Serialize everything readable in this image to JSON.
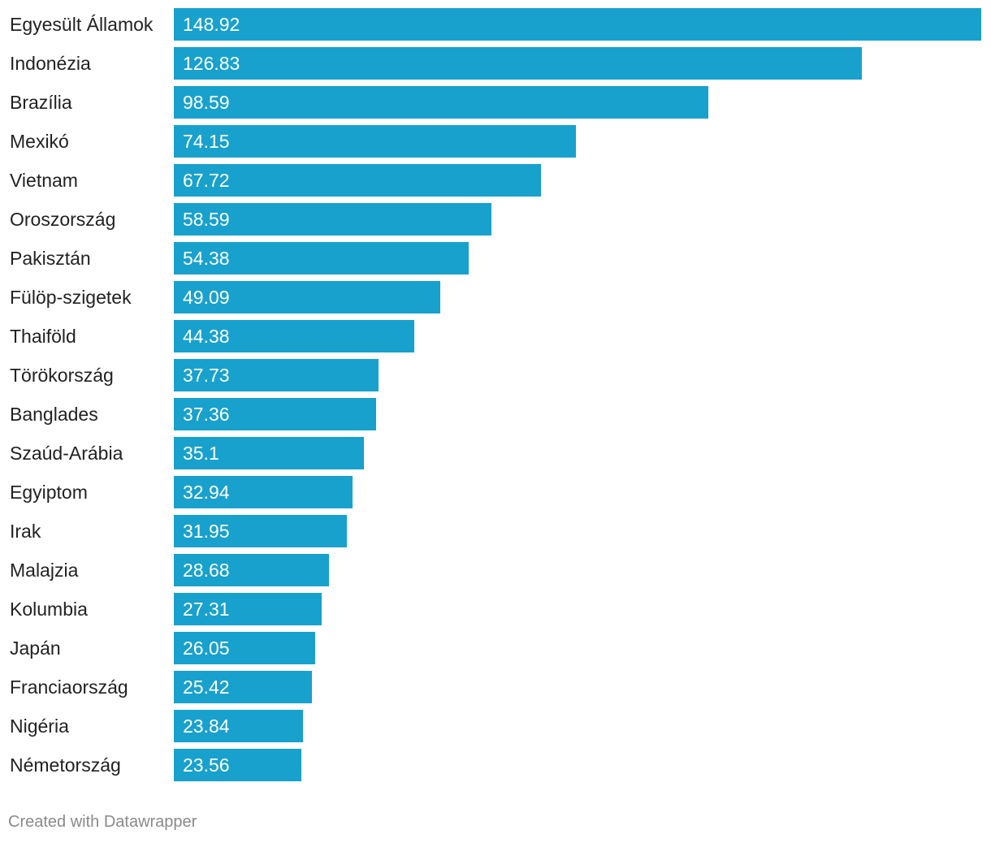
{
  "chart_data": {
    "type": "bar",
    "orientation": "horizontal",
    "categories": [
      "Egyesült Államok",
      "Indonézia",
      "Brazília",
      "Mexikó",
      "Vietnam",
      "Oroszország",
      "Pakisztán",
      "Fülöp-szigetek",
      "Thaiföld",
      "Törökország",
      "Banglades",
      "Szaúd-Arábia",
      "Egyiptom",
      "Irak",
      "Malajzia",
      "Kolumbia",
      "Japán",
      "Franciaország",
      "Nigéria",
      "Németország"
    ],
    "values": [
      148.92,
      126.83,
      98.59,
      74.15,
      67.72,
      58.59,
      54.38,
      49.09,
      44.38,
      37.73,
      37.36,
      35.1,
      32.94,
      31.95,
      28.68,
      27.31,
      26.05,
      25.42,
      23.84,
      23.56
    ],
    "value_labels": [
      "148.92",
      "126.83",
      "98.59",
      "74.15",
      "67.72",
      "58.59",
      "54.38",
      "49.09",
      "44.38",
      "37.73",
      "37.36",
      "35.1",
      "32.94",
      "31.95",
      "28.68",
      "27.31",
      "26.05",
      "25.42",
      "23.84",
      "23.56"
    ],
    "title": "",
    "xlabel": "",
    "ylabel": "",
    "xlim": [
      0,
      148.92
    ],
    "grid": false,
    "bar_color": "#18a1cd"
  },
  "footer": {
    "credit": "Created with Datawrapper"
  }
}
